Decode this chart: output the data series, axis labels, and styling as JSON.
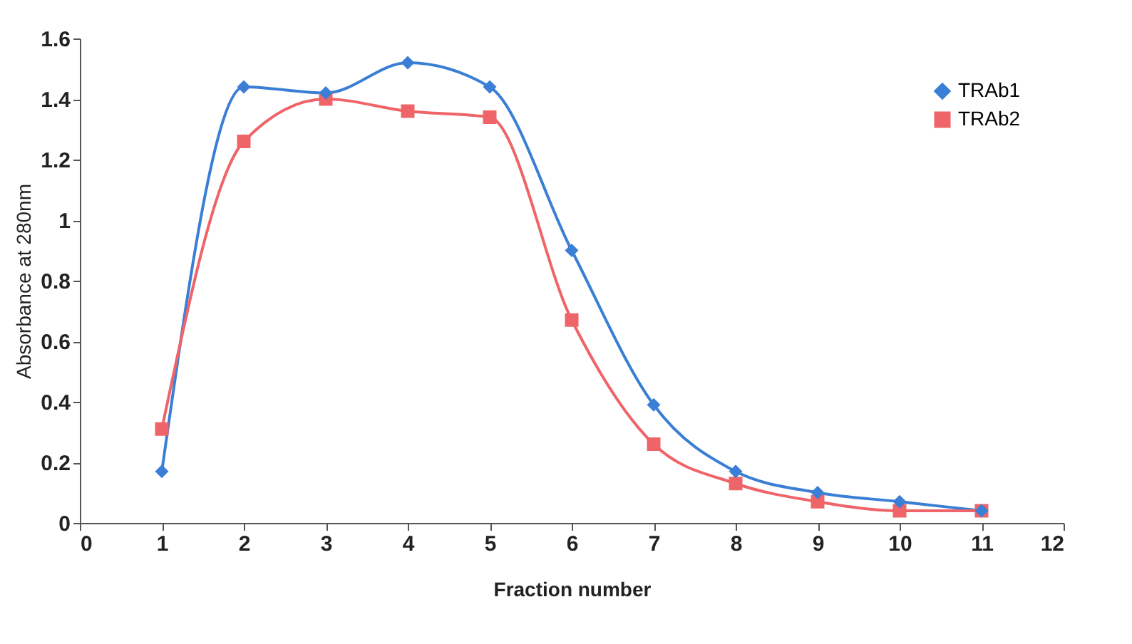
{
  "chart_data": {
    "type": "line",
    "xlabel": "Fraction number",
    "ylabel": "Absorbance at 280nm",
    "x": [
      1,
      2,
      3,
      4,
      5,
      6,
      7,
      8,
      9,
      10,
      11
    ],
    "series": [
      {
        "name": "TRAb1",
        "color": "#3a7fd5",
        "marker": "diamond",
        "values": [
          0.17,
          1.44,
          1.42,
          1.52,
          1.44,
          0.9,
          0.39,
          0.17,
          0.1,
          0.07,
          0.04
        ]
      },
      {
        "name": "TRAb2",
        "color": "#ef6468",
        "marker": "square",
        "values": [
          0.31,
          1.26,
          1.4,
          1.36,
          1.34,
          0.67,
          0.26,
          0.13,
          0.07,
          0.04,
          0.04
        ]
      }
    ],
    "xlim": [
      0,
      12
    ],
    "xticks": [
      0,
      1,
      2,
      3,
      4,
      5,
      6,
      7,
      8,
      9,
      10,
      11,
      12
    ],
    "ylim": [
      0,
      1.6
    ],
    "yticks": [
      0,
      0.2,
      0.4,
      0.6,
      0.8,
      1,
      1.2,
      1.4,
      1.6
    ],
    "grid": false,
    "legend": "top right",
    "line_style": "solid"
  }
}
